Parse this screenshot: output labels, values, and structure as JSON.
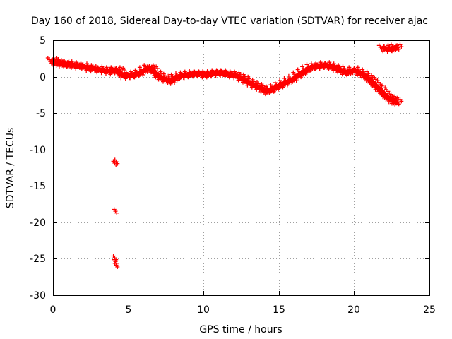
{
  "chart_data": {
    "type": "scatter",
    "title": "Day 160 of 2018, Sidereal Day-to-day VTEC variation (SDTVAR) for receiver ajac",
    "xlabel": "GPS time / hours",
    "ylabel": "SDTVAR / TECUs",
    "xlim": [
      0,
      25
    ],
    "ylim": [
      -30,
      5
    ],
    "xticks": [
      0,
      5,
      10,
      15,
      20,
      25
    ],
    "yticks": [
      -30,
      -25,
      -20,
      -15,
      -10,
      -5,
      0,
      5
    ],
    "grid": true,
    "marker": "plus",
    "color": "#ff0000",
    "series": [
      {
        "name": "SDTVAR",
        "x": [
          0.0,
          0.1,
          0.3,
          0.5,
          0.8,
          1.0,
          1.3,
          1.6,
          2.0,
          2.3,
          2.6,
          3.0,
          3.3,
          3.6,
          3.9,
          4.2,
          4.4,
          4.6,
          4.9,
          5.2,
          5.5,
          5.8,
          6.1,
          6.4,
          6.6,
          6.9,
          7.1,
          7.4,
          7.7,
          7.9,
          8.2,
          8.5,
          8.8,
          9.1,
          9.4,
          9.7,
          10.0,
          10.3,
          10.6,
          10.9,
          11.2,
          11.5,
          11.8,
          12.1,
          12.4,
          12.7,
          13.0,
          13.3,
          13.6,
          13.9,
          14.2,
          14.5,
          14.8,
          15.1,
          15.4,
          15.7,
          16.0,
          16.3,
          16.6,
          16.9,
          17.2,
          17.5,
          17.8,
          18.1,
          18.4,
          18.7,
          19.0,
          19.3,
          19.6,
          20.0,
          20.3,
          20.6,
          20.9,
          21.1,
          21.3,
          21.5,
          21.8,
          22.0,
          22.2,
          22.4,
          22.6,
          22.8,
          22.0,
          22.3,
          22.6,
          22.8,
          4.1,
          4.2,
          4.15,
          4.1,
          4.15,
          4.2
        ],
        "y": [
          2.2,
          2.0,
          1.9,
          1.8,
          1.7,
          1.7,
          1.6,
          1.5,
          1.4,
          1.2,
          1.1,
          1.0,
          0.9,
          0.8,
          0.7,
          0.9,
          0.8,
          0.2,
          0.1,
          0.2,
          0.3,
          0.5,
          0.9,
          1.2,
          1.0,
          0.3,
          0.0,
          -0.3,
          -0.5,
          -0.6,
          -0.1,
          0.1,
          0.2,
          0.3,
          0.4,
          0.4,
          0.3,
          0.3,
          0.4,
          0.5,
          0.5,
          0.4,
          0.3,
          0.2,
          -0.1,
          -0.4,
          -0.8,
          -1.1,
          -1.4,
          -1.7,
          -2.0,
          -1.8,
          -1.5,
          -1.2,
          -0.9,
          -0.6,
          -0.3,
          0.2,
          0.6,
          1.0,
          1.3,
          1.4,
          1.5,
          1.6,
          1.4,
          1.2,
          1.0,
          0.7,
          0.6,
          0.9,
          0.6,
          0.3,
          -0.2,
          -0.5,
          -0.9,
          -1.4,
          -1.9,
          -2.4,
          -2.8,
          -3.1,
          -3.3,
          -3.5,
          3.9,
          3.8,
          3.9,
          4.0,
          -12.0,
          -11.8,
          -18.6,
          -25.0,
          -25.5,
          -26.0
        ]
      }
    ]
  }
}
